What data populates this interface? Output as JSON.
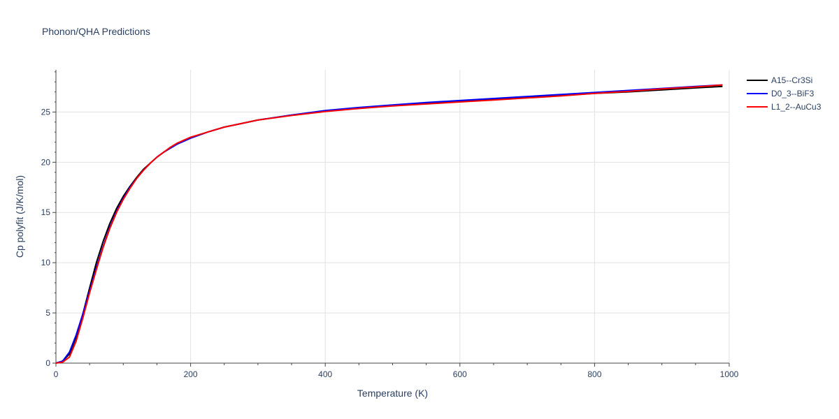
{
  "chart_data": {
    "type": "line",
    "title": "Phonon/QHA Predictions",
    "xlabel": "Temperature (K)",
    "ylabel": "Cp polyfit (J/K/mol)",
    "xlim": [
      0,
      1000
    ],
    "ylim": [
      0,
      29.2
    ],
    "x_ticks": [
      0,
      200,
      400,
      600,
      800,
      1000
    ],
    "y_ticks": [
      0,
      5,
      10,
      15,
      20,
      25
    ],
    "grid": true,
    "legend_position": "top-right",
    "x": [
      0,
      10,
      20,
      30,
      40,
      50,
      60,
      70,
      80,
      90,
      100,
      110,
      120,
      130,
      140,
      150,
      160,
      170,
      180,
      190,
      200,
      225,
      250,
      275,
      300,
      350,
      400,
      450,
      500,
      550,
      600,
      650,
      700,
      750,
      800,
      850,
      900,
      950,
      990
    ],
    "series": [
      {
        "name": "A15--Cr3Si",
        "color": "#000000",
        "values": [
          0,
          0.2,
          0.9,
          2.6,
          4.9,
          7.5,
          10.0,
          12.1,
          13.9,
          15.4,
          16.6,
          17.6,
          18.5,
          19.3,
          19.9,
          20.5,
          21.0,
          21.4,
          21.8,
          22.1,
          22.4,
          23.0,
          23.5,
          23.85,
          24.2,
          24.7,
          25.1,
          25.4,
          25.65,
          25.85,
          26.05,
          26.25,
          26.45,
          26.65,
          26.85,
          27.0,
          27.2,
          27.4,
          27.55
        ]
      },
      {
        "name": "D0_3--BiF3",
        "color": "#0000ff",
        "values": [
          0,
          0.2,
          1.1,
          2.8,
          4.9,
          7.2,
          9.5,
          11.6,
          13.5,
          15.1,
          16.4,
          17.5,
          18.4,
          19.2,
          19.9,
          20.5,
          21.0,
          21.4,
          21.8,
          22.1,
          22.4,
          23.0,
          23.5,
          23.85,
          24.2,
          24.7,
          25.15,
          25.45,
          25.7,
          25.95,
          26.15,
          26.35,
          26.55,
          26.75,
          26.95,
          27.15,
          27.35,
          27.55,
          27.7
        ]
      },
      {
        "name": "L1_2--AuCu3",
        "color": "#ff0000",
        "values": [
          0,
          0.1,
          0.6,
          2.2,
          4.5,
          7.0,
          9.3,
          11.5,
          13.4,
          15.0,
          16.3,
          17.4,
          18.4,
          19.2,
          19.9,
          20.5,
          21.0,
          21.5,
          21.9,
          22.2,
          22.5,
          23.0,
          23.5,
          23.85,
          24.2,
          24.65,
          25.05,
          25.35,
          25.6,
          25.8,
          26.0,
          26.2,
          26.4,
          26.6,
          26.85,
          27.05,
          27.3,
          27.5,
          27.7
        ]
      }
    ]
  }
}
